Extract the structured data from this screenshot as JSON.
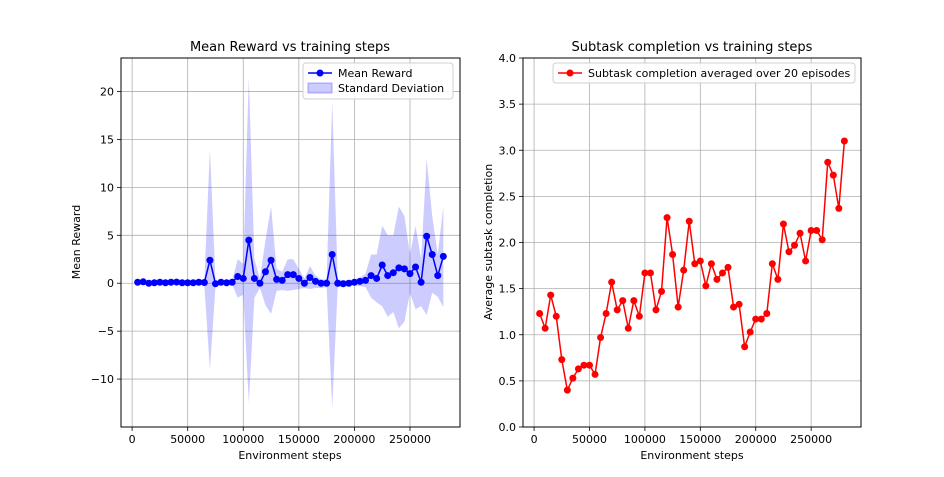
{
  "chart_data": [
    {
      "type": "line",
      "title": "Mean Reward vs training steps",
      "xlabel": "Environment steps",
      "ylabel": "Mean Reward",
      "xlim": [
        -10000,
        295000
      ],
      "ylim": [
        -15,
        23.5
      ],
      "xticks": [
        0,
        50000,
        100000,
        150000,
        200000,
        250000
      ],
      "yticks": [
        -10,
        -5,
        0,
        5,
        10,
        15,
        20
      ],
      "ytick_labels": [
        "−10",
        "−5",
        "0",
        "5",
        "10",
        "15",
        "20"
      ],
      "grid": true,
      "legend_position": "top-right",
      "series": [
        {
          "name": "Mean Reward",
          "color": "#0000ff",
          "x": [
            5000,
            10000,
            15000,
            20000,
            25000,
            30000,
            35000,
            40000,
            45000,
            50000,
            55000,
            60000,
            65000,
            70000,
            75000,
            80000,
            85000,
            90000,
            95000,
            100000,
            105000,
            110000,
            115000,
            120000,
            125000,
            130000,
            135000,
            140000,
            145000,
            150000,
            155000,
            160000,
            165000,
            170000,
            175000,
            180000,
            185000,
            190000,
            195000,
            200000,
            205000,
            210000,
            215000,
            220000,
            225000,
            230000,
            235000,
            240000,
            245000,
            250000,
            255000,
            260000,
            265000,
            270000,
            275000,
            280000
          ],
          "y": [
            0.1,
            0.15,
            0,
            0.05,
            0.1,
            0.05,
            0.1,
            0.12,
            0.05,
            0.05,
            0.05,
            0.1,
            0.08,
            2.4,
            -0.05,
            0.1,
            0.05,
            0.1,
            0.7,
            0.5,
            4.5,
            0.5,
            0,
            1.2,
            2.4,
            0.4,
            0.3,
            0.9,
            0.9,
            0.5,
            0,
            0.6,
            0.2,
            0,
            0,
            3,
            0,
            -0.05,
            0,
            0.1,
            0.2,
            0.3,
            0.8,
            0.5,
            1.9,
            0.8,
            1.1,
            1.6,
            1.5,
            1,
            1.7,
            0.1,
            4.9,
            3,
            0.8,
            2.8
          ]
        },
        {
          "name": "Standard Deviation",
          "color": "#0000ff",
          "band": true,
          "upper": [
            0.3,
            0.4,
            0.2,
            0.3,
            0.3,
            0.3,
            0.3,
            0.3,
            0.3,
            0.3,
            0.3,
            0.3,
            0.4,
            14,
            0.3,
            0.3,
            0.3,
            0.3,
            2.5,
            2,
            21.5,
            2.5,
            0.5,
            4.5,
            8,
            1.5,
            1.2,
            2.5,
            2.5,
            1.5,
            0.5,
            1.8,
            0.8,
            0.4,
            0.4,
            19,
            0.4,
            0.3,
            0.3,
            0.4,
            0.6,
            1,
            3,
            3,
            6,
            5,
            5,
            8,
            7,
            3,
            6,
            2.5,
            13,
            7,
            3,
            8
          ],
          "lower": [
            -0.1,
            -0.1,
            -0.2,
            -0.2,
            -0.1,
            -0.2,
            -0.1,
            -0.1,
            -0.2,
            -0.2,
            -0.2,
            -0.1,
            -0.3,
            -9,
            -0.4,
            -0.1,
            -0.2,
            -0.1,
            -1.5,
            -1.2,
            -12.5,
            -1.5,
            -0.5,
            -2.3,
            -3.2,
            -0.8,
            -0.7,
            -0.8,
            -0.7,
            -0.6,
            -0.5,
            -0.6,
            -0.5,
            -0.5,
            -0.4,
            -13,
            -0.4,
            -0.4,
            -0.3,
            -0.2,
            -0.3,
            -0.4,
            -1.5,
            -2,
            -2.4,
            -3.5,
            -3,
            -4.7,
            -4,
            -1,
            -2.7,
            -2.4,
            -3.3,
            -1,
            -1.4,
            -2.5
          ]
        }
      ]
    },
    {
      "type": "line",
      "title": "Subtask completion vs training steps",
      "xlabel": "Environment steps",
      "ylabel": "Average subtask completion",
      "xlim": [
        -10000,
        295000
      ],
      "ylim": [
        0,
        4
      ],
      "xticks": [
        0,
        50000,
        100000,
        150000,
        200000,
        250000
      ],
      "yticks": [
        0,
        0.5,
        1,
        1.5,
        2,
        2.5,
        3,
        3.5,
        4
      ],
      "ytick_labels": [
        "0.0",
        "0.5",
        "1.0",
        "1.5",
        "2.0",
        "2.5",
        "3.0",
        "3.5",
        "4.0"
      ],
      "grid": true,
      "legend_position": "top-right",
      "series": [
        {
          "name": "Subtask completion averaged over 20 episodes",
          "color": "#ff0000",
          "x": [
            5000,
            10000,
            15000,
            20000,
            25000,
            30000,
            35000,
            40000,
            45000,
            50000,
            55000,
            60000,
            65000,
            70000,
            75000,
            80000,
            85000,
            90000,
            95000,
            100000,
            105000,
            110000,
            115000,
            120000,
            125000,
            130000,
            135000,
            140000,
            145000,
            150000,
            155000,
            160000,
            165000,
            170000,
            175000,
            180000,
            185000,
            190000,
            195000,
            200000,
            205000,
            210000,
            215000,
            220000,
            225000,
            230000,
            235000,
            240000,
            245000,
            250000,
            255000,
            260000,
            265000,
            270000,
            275000,
            280000
          ],
          "y": [
            1.23,
            1.07,
            1.43,
            1.2,
            0.73,
            0.4,
            0.53,
            0.63,
            0.67,
            0.67,
            0.57,
            0.97,
            1.23,
            1.57,
            1.27,
            1.37,
            1.07,
            1.37,
            1.2,
            1.67,
            1.67,
            1.27,
            1.47,
            2.27,
            1.87,
            1.3,
            1.7,
            2.23,
            1.77,
            1.8,
            1.53,
            1.77,
            1.6,
            1.67,
            1.73,
            1.3,
            1.33,
            0.87,
            1.03,
            1.17,
            1.17,
            1.23,
            1.77,
            1.6,
            2.2,
            1.9,
            1.97,
            2.1,
            1.8,
            2.13,
            2.13,
            2.03,
            2.87,
            2.73,
            2.37,
            3.1
          ]
        }
      ]
    }
  ]
}
